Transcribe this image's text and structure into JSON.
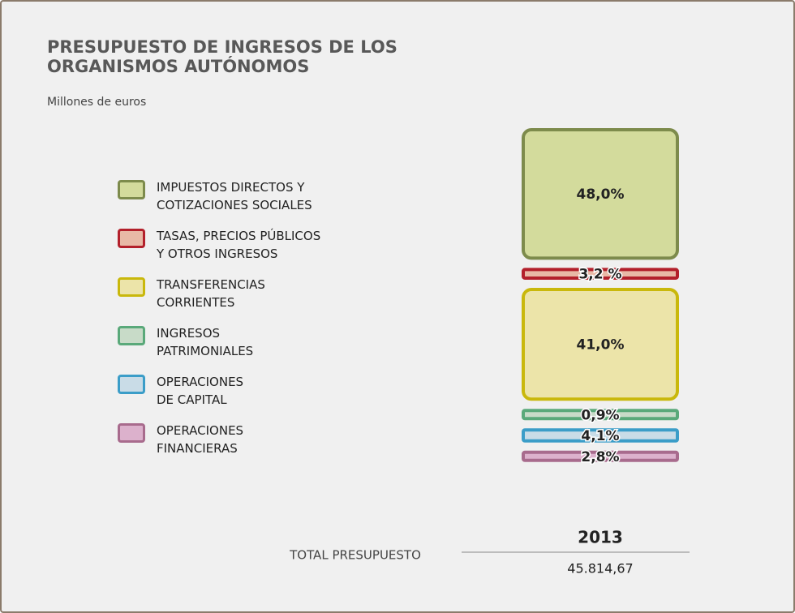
{
  "chart_data": {
    "type": "bar",
    "stacked": true,
    "title": "PRESUPUESTO DE INGRESOS DE LOS\nORGANISMOS AUTÓNOMOS",
    "subtitle": "Millones de euros",
    "categories": [
      "2013"
    ],
    "series": [
      {
        "name": "IMPUESTOS DIRECTOS Y\nCOTIZACIONES SOCIALES",
        "color": "#7d8b4c",
        "fill": "#d3db9c",
        "values": [
          48.0
        ],
        "value_labels": [
          "48,0%"
        ]
      },
      {
        "name": "TASAS, PRECIOS PÚBLICOS\nY OTROS INGRESOS",
        "color": "#b3202b",
        "fill": "#e8b9a6",
        "values": [
          3.2
        ],
        "value_labels": [
          "3,2 %"
        ]
      },
      {
        "name": "TRANSFERENCIAS\nCORRIENTES",
        "color": "#c9b80c",
        "fill": "#ece4a9",
        "values": [
          41.0
        ],
        "value_labels": [
          "41,0%"
        ]
      },
      {
        "name": "INGRESOS\nPATRIMONIALES",
        "color": "#5aa97a",
        "fill": "#c8dbc8",
        "values": [
          0.9
        ],
        "value_labels": [
          "0,9%"
        ]
      },
      {
        "name": "OPERACIONES\nDE CAPITAL",
        "color": "#3b9dc8",
        "fill": "#c9dce7",
        "values": [
          4.1
        ],
        "value_labels": [
          "4,1%"
        ]
      },
      {
        "name": "OPERACIONES\nFINANCIERAS",
        "color": "#a86b8d",
        "fill": "#dcb1cc",
        "values": [
          2.8
        ],
        "value_labels": [
          "2,8%"
        ]
      }
    ],
    "total_label": "TOTAL PRESUPUESTO",
    "total_value": 45814.67,
    "total_value_label": "45.814,67"
  }
}
